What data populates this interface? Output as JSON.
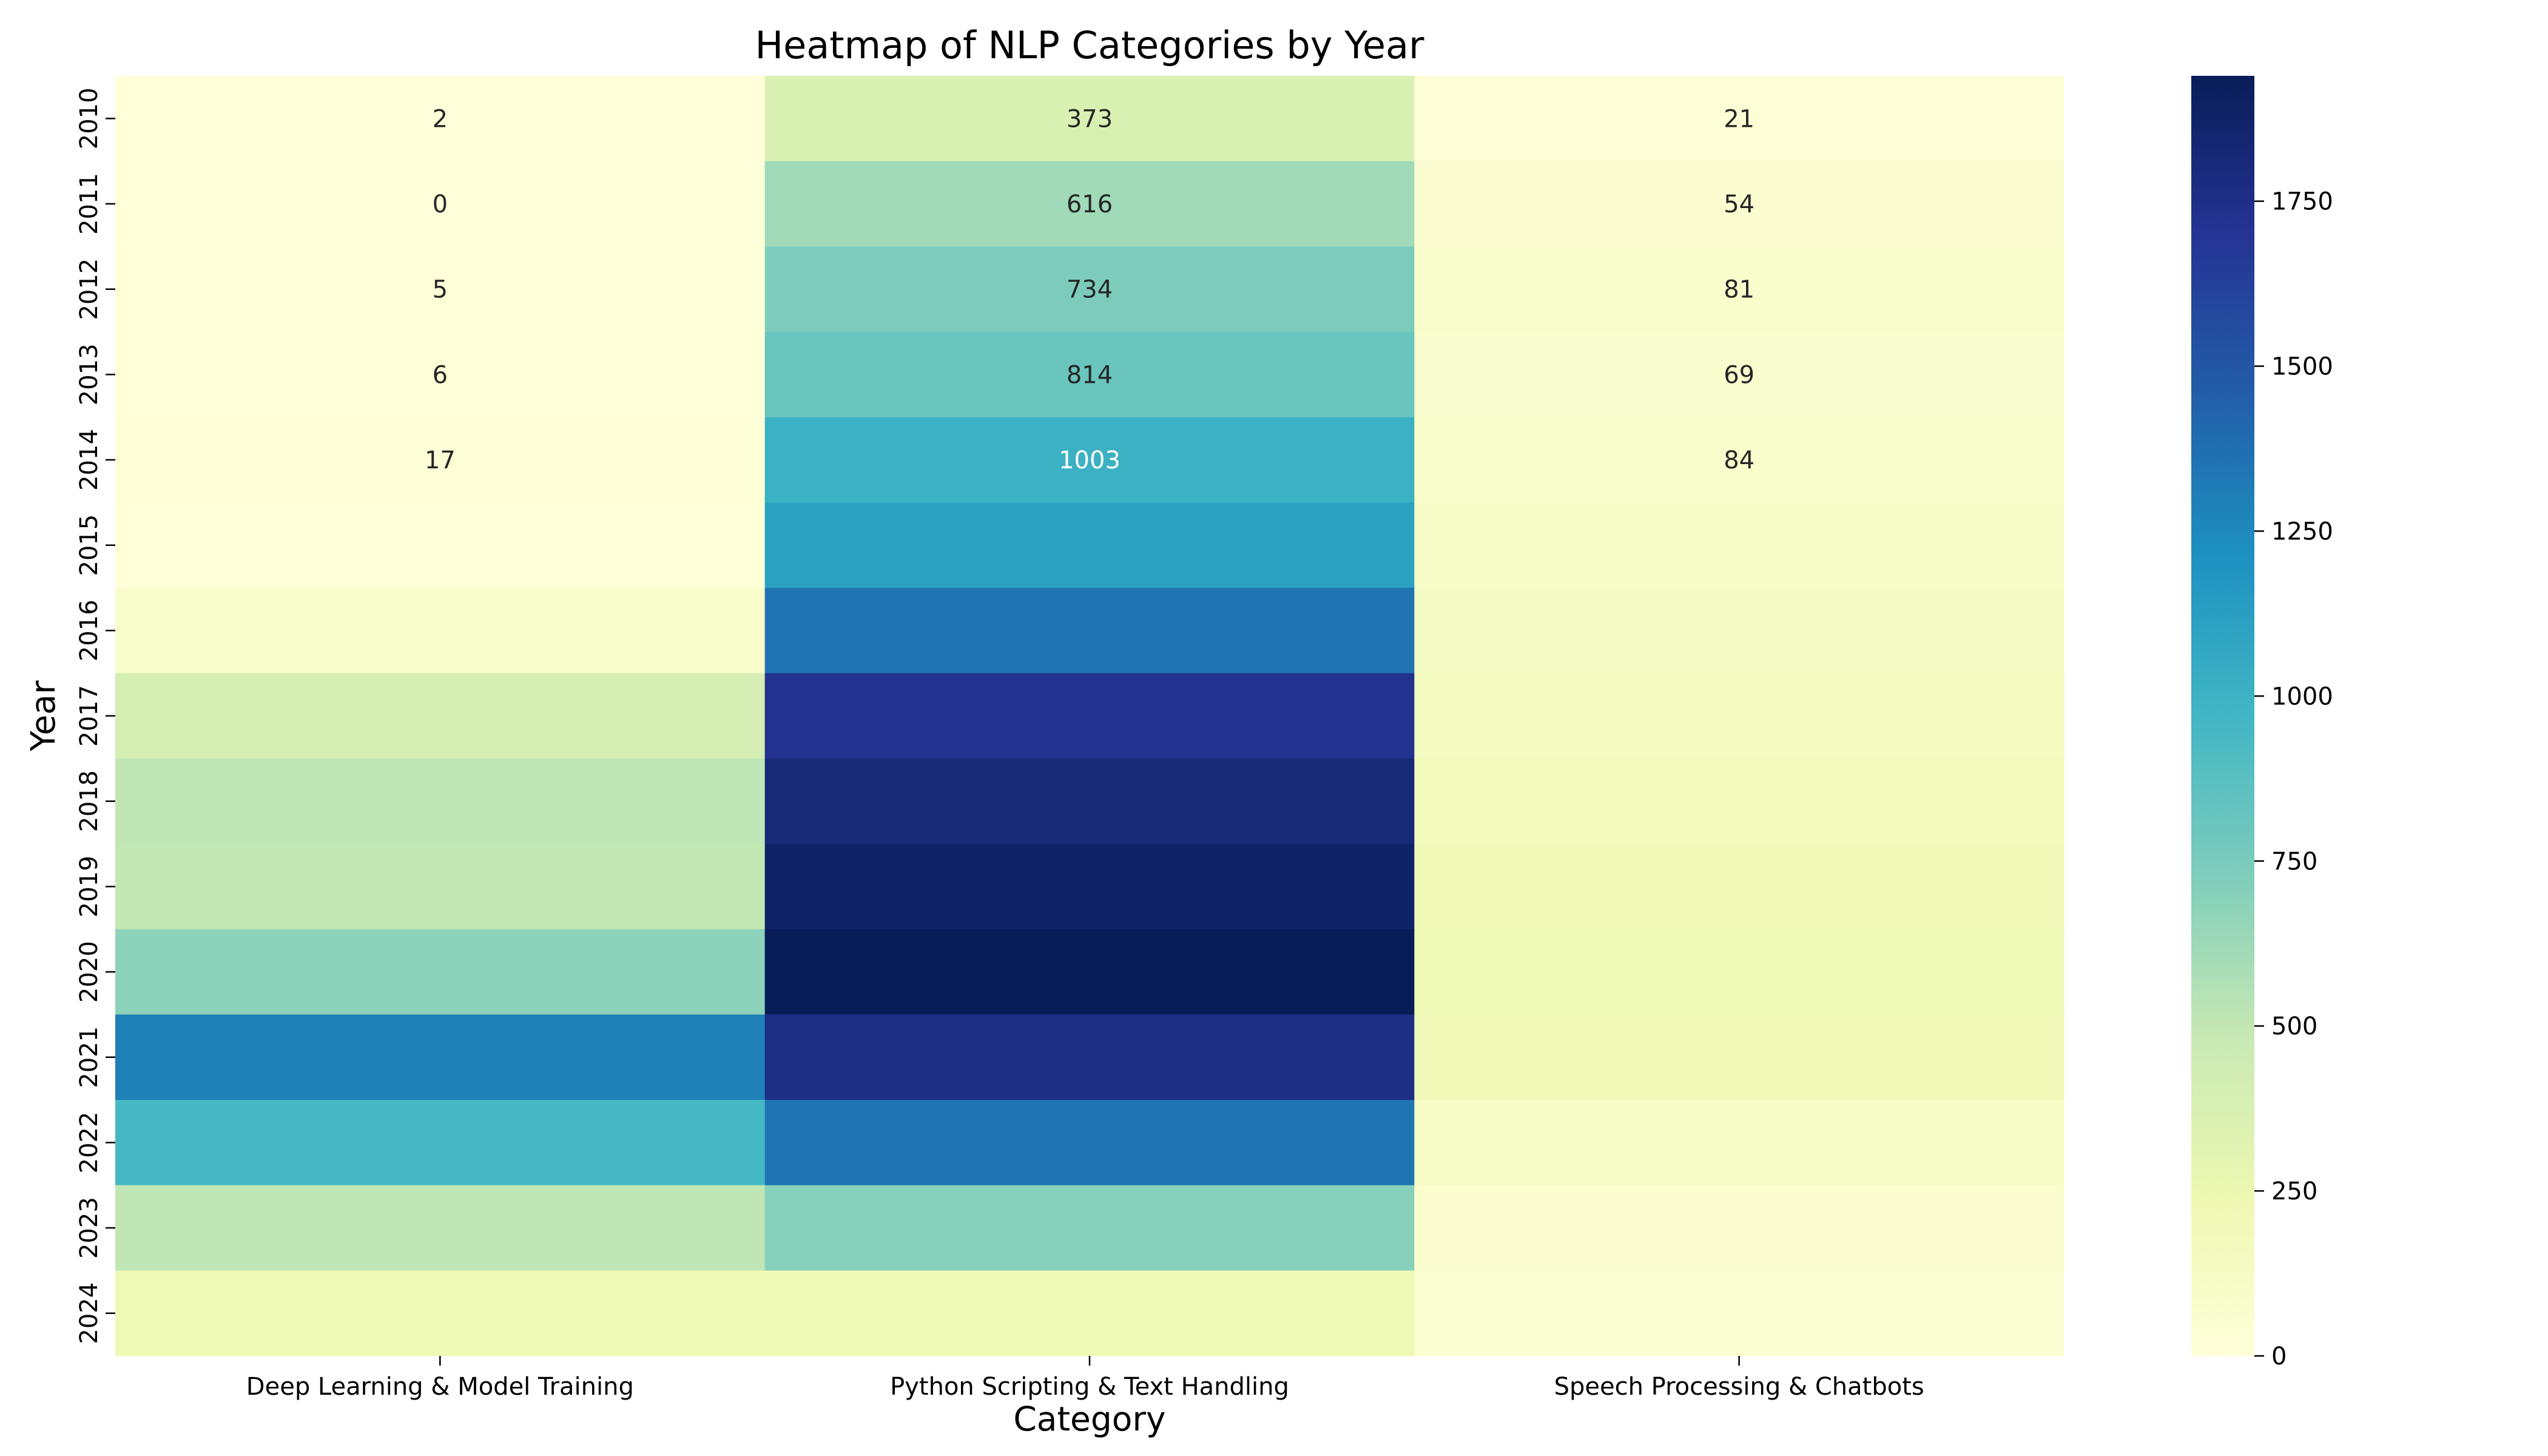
{
  "chart_data": {
    "type": "heatmap",
    "title": "Heatmap of NLP Categories by Year",
    "xlabel": "Category",
    "ylabel": "Year",
    "categories": [
      "Deep Learning & Model Training",
      "Python Scripting & Text Handling",
      "Speech Processing & Chatbots"
    ],
    "years": [
      "2010",
      "2011",
      "2012",
      "2013",
      "2014",
      "2015",
      "2016",
      "2017",
      "2018",
      "2019",
      "2020",
      "2021",
      "2022",
      "2023",
      "2024"
    ],
    "values": [
      [
        2,
        373,
        21
      ],
      [
        0,
        616,
        54
      ],
      [
        5,
        734,
        81
      ],
      [
        6,
        814,
        69
      ],
      [
        17,
        1003,
        84
      ],
      [
        3,
        1110,
        100
      ],
      [
        80,
        1350,
        130
      ],
      [
        400,
        1720,
        150
      ],
      [
        510,
        1810,
        180
      ],
      [
        500,
        1880,
        200
      ],
      [
        680,
        1940,
        210
      ],
      [
        1300,
        1760,
        200
      ],
      [
        950,
        1350,
        110
      ],
      [
        510,
        700,
        60
      ],
      [
        210,
        210,
        50
      ]
    ],
    "annotated_rows": 5,
    "colormap": "YlGnBu",
    "colorbar": {
      "min": 0,
      "max": 1940,
      "ticks": [
        0,
        250,
        500,
        750,
        1000,
        1250,
        1500,
        1750
      ]
    }
  }
}
